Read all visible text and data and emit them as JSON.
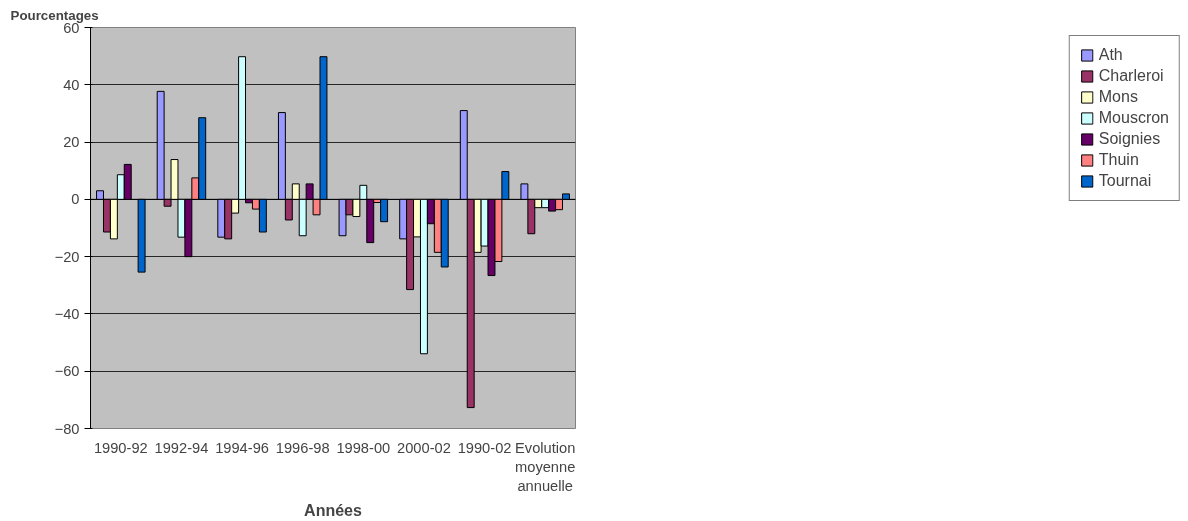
{
  "chart_data": {
    "type": "bar",
    "xlabel": "Années",
    "ylabel": "Pourcentages",
    "categories": [
      "1990-92",
      "1992-94",
      "1994-96",
      "1996-98",
      "1998-00",
      "2000-02",
      "1990-02",
      "Evolution moyenne annuelle"
    ],
    "ylim": [
      -80,
      60
    ],
    "yticks": [
      -80,
      -60,
      -40,
      -20,
      0,
      20,
      40,
      60
    ],
    "grid": "y",
    "legend": "right",
    "series": [
      {
        "name": "Ath",
        "color": "#9999ff",
        "values": [
          3,
          37.7,
          -13.2,
          30.3,
          -12.7,
          -13.8,
          31,
          5.4
        ]
      },
      {
        "name": "Charleroi",
        "color": "#993366",
        "values": [
          -11.4,
          -2.4,
          -13.8,
          -7.2,
          -5.4,
          -31.5,
          -72.7,
          -12
        ]
      },
      {
        "name": "Mons",
        "color": "#ffffcc",
        "values": [
          -13.8,
          13.9,
          -4.8,
          5.4,
          -6,
          -13.1,
          -18.5,
          -2.9
        ]
      },
      {
        "name": "Mouscron",
        "color": "#ccffff",
        "values": [
          8.6,
          -13.2,
          49.8,
          -12.7,
          4.9,
          -53.9,
          -16.3,
          -2.9
        ]
      },
      {
        "name": "Soignies",
        "color": "#660066",
        "values": [
          12.2,
          -20,
          -1.2,
          5.4,
          -15.1,
          -8.5,
          -26.6,
          -4.1
        ]
      },
      {
        "name": "Thuin",
        "color": "#ff8080",
        "values": [
          null,
          7.5,
          -3.4,
          -5.4,
          -1.1,
          -18.5,
          -21.7,
          -3.6
        ]
      },
      {
        "name": "Tournai",
        "color": "#0066cc",
        "values": [
          -25.4,
          28.5,
          -11.4,
          49.8,
          -7.8,
          -23.6,
          9.7,
          1.9
        ]
      }
    ]
  }
}
